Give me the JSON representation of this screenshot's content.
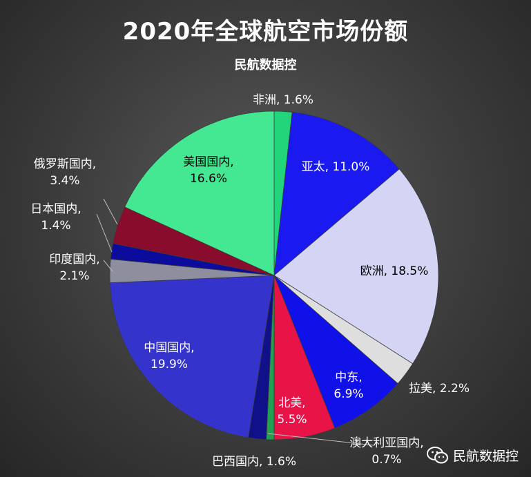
{
  "chart_data": {
    "type": "pie",
    "title": "2020年全球航空市场份额",
    "subtitle": "民航数据控",
    "slices": [
      {
        "label": "非洲",
        "value_text": "1.6%",
        "value": 1.6,
        "color": "#22d47a"
      },
      {
        "label": "亚太",
        "value_text": "11.0%",
        "value": 11.0,
        "color": "#1a1af0"
      },
      {
        "label": "欧洲",
        "value_text": "18.5%",
        "value": 18.5,
        "color": "#d4d4f4"
      },
      {
        "label": "拉美",
        "value_text": "2.2%",
        "value": 2.2,
        "color": "#dedede"
      },
      {
        "label": "中东",
        "value_text": "6.9%",
        "value": 6.9,
        "color": "#1010e8"
      },
      {
        "label": "北美",
        "value_text": "5.5%",
        "value": 5.5,
        "color": "#e81448"
      },
      {
        "label": "澳大利亚国内",
        "value_text": "0.7%",
        "value": 0.7,
        "color": "#20a050"
      },
      {
        "label": "巴西国内",
        "value_text": "1.6%",
        "value": 1.6,
        "color": "#10108a"
      },
      {
        "label": "中国国内",
        "value_text": "19.9%",
        "value": 19.9,
        "color": "#3434cc"
      },
      {
        "label": "印度国内",
        "value_text": "2.1%",
        "value": 2.1,
        "color": "#8e8e9e"
      },
      {
        "label": "日本国内",
        "value_text": "1.4%",
        "value": 1.4,
        "color": "#0c0c9c"
      },
      {
        "label": "俄罗斯国内",
        "value_text": "3.4%",
        "value": 3.4,
        "color": "#8a0c2c"
      },
      {
        "label": "美国国内",
        "value_text": "16.6%",
        "value": 16.6,
        "color": "#44e892"
      }
    ]
  },
  "watermark": {
    "text": "民航数据控",
    "icon": "wechat-icon"
  }
}
